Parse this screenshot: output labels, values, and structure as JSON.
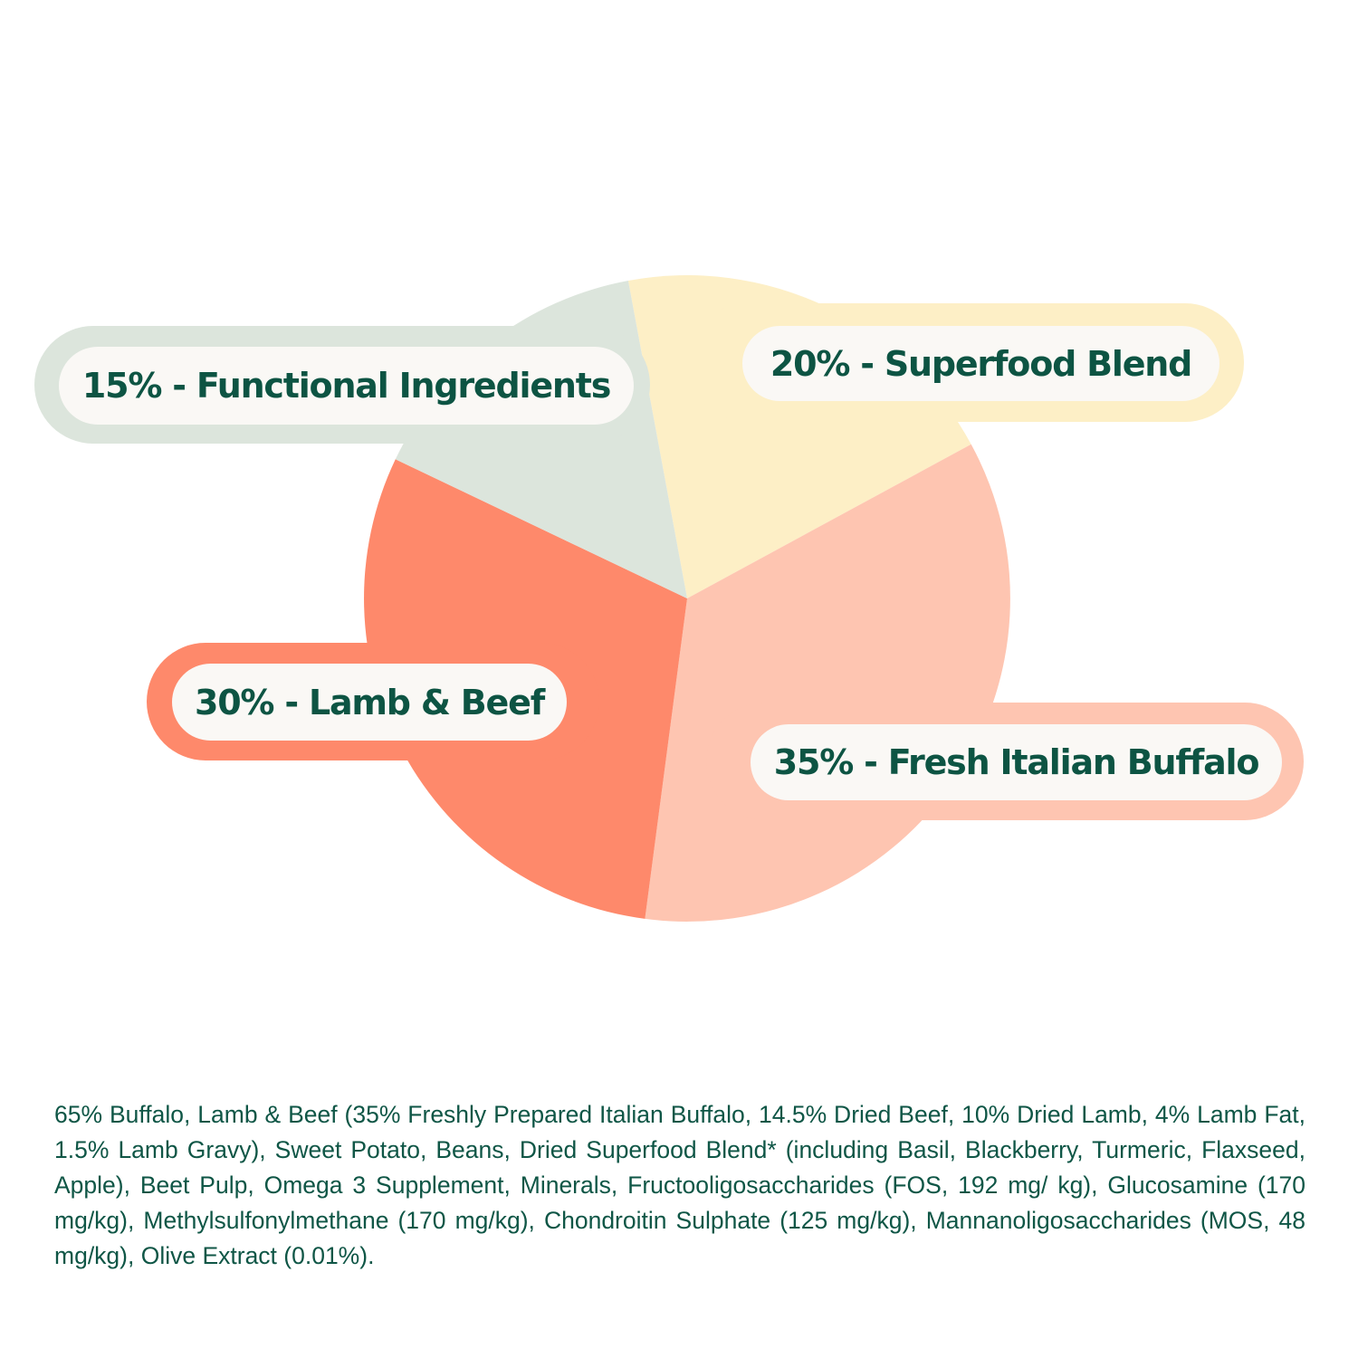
{
  "chart_data": {
    "type": "pie",
    "title": "",
    "categories": [
      "Superfood Blend",
      "Fresh Italian Buffalo",
      "Lamb & Beef",
      "Functional Ingredients"
    ],
    "values": [
      20,
      35,
      30,
      15
    ],
    "unit": "%",
    "colors": [
      "#fdefc6",
      "#fec5b1",
      "#fe896b",
      "#dce5dc"
    ],
    "labels": [
      "20% - Superfood Blend",
      "35% - Fresh Italian Buffalo",
      "30% - Lamb & Beef",
      "15% - Functional Ingredients"
    ],
    "legend": "callout labels adjacent to slices",
    "grid": false
  },
  "callouts": {
    "functional": {
      "label": "15% - Functional Ingredients",
      "color": "#dce5dc"
    },
    "superfood": {
      "label": "20% - Superfood Blend",
      "color": "#fdefc6"
    },
    "lamb_beef": {
      "label": "30% - Lamb & Beef",
      "color": "#fe896b"
    },
    "buffalo": {
      "label": "35% - Fresh Italian Buffalo",
      "color": "#fec5b1"
    }
  },
  "ingredients": {
    "text": "65% Buffalo, Lamb & Beef (35% Freshly Prepared Italian Buffalo, 14.5% Dried Beef, 10% Dried Lamb, 4% Lamb Fat, 1.5% Lamb Gravy), Sweet Potato, Beans, Dried Superfood Blend* (including Basil, Blackberry, Turmeric, Flaxseed, Apple), Beet Pulp, Omega 3 Supplement, Minerals, Fructooligosaccharides (FOS, 192 mg/ kg), Glucosamine (170 mg/kg), Methylsulfonylmethane (170 mg/kg), Chondroitin Sulphate (125 mg/kg), Mannanoligosaccharides (MOS, 48 mg/kg), Olive Extract (0.01%)."
  },
  "theme": {
    "text_color": "#0d5443",
    "pill_background": "#faf8f5",
    "background": "#ffffff"
  }
}
